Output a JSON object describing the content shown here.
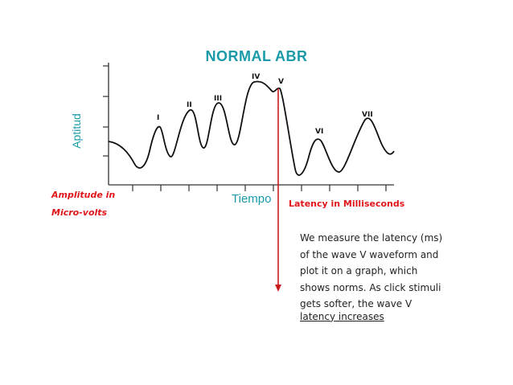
{
  "title": "NORMAL ABR",
  "y_axis_label": "Aptitud",
  "x_axis_label": "Tiempo",
  "amplitude_label_line1": "Amplitude in",
  "amplitude_label_line2": "Micro-volts",
  "latency_label": "Latency in Milliseconds",
  "note_lines": [
    "We measure the latency (ms)",
    "of the wave V waveform and",
    "plot it on a graph, which",
    "shows norms. As click stimuli",
    "gets softer, the wave V",
    "latency increases"
  ],
  "waves": [
    "I",
    "II",
    "III",
    "IV",
    "V",
    "VI",
    "VII"
  ],
  "colors": {
    "title": "#1a9aa8",
    "annotation": "#e0161a",
    "arrow": "#cc1b1b"
  }
}
